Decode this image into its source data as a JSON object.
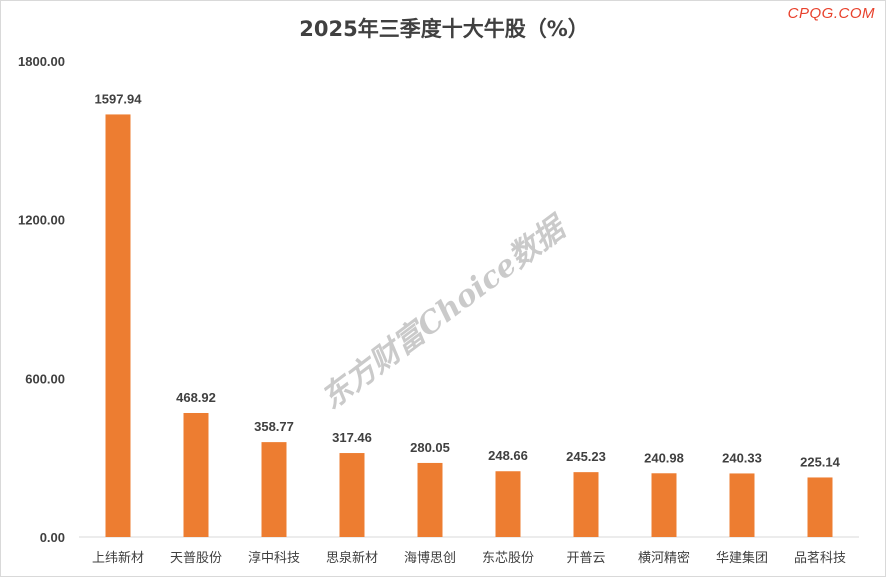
{
  "chart_data": {
    "type": "bar",
    "title": "2025年三季度十大牛股（%）",
    "categories": [
      "上纬新材",
      "天普股份",
      "淳中科技",
      "思泉新材",
      "海博思创",
      "东芯股份",
      "开普云",
      "横河精密",
      "华建集团",
      "品茗科技"
    ],
    "values": [
      1597.94,
      468.92,
      358.77,
      317.46,
      280.05,
      248.66,
      245.23,
      240.98,
      240.33,
      225.14
    ],
    "value_labels": [
      "1597.94",
      "468.92",
      "358.77",
      "317.46",
      "280.05",
      "248.66",
      "245.23",
      "240.98",
      "240.33",
      "225.14"
    ],
    "ylim": [
      0,
      1800
    ],
    "yticks": [
      0,
      600,
      1200,
      1800
    ],
    "ytick_labels": [
      "0.00",
      "600.00",
      "1200.00",
      "1800.00"
    ],
    "grid": false,
    "legend": "none",
    "bar_color": "#ed7d31"
  },
  "brand": "CPQG.COM",
  "watermark": "东方财富Choice数据"
}
